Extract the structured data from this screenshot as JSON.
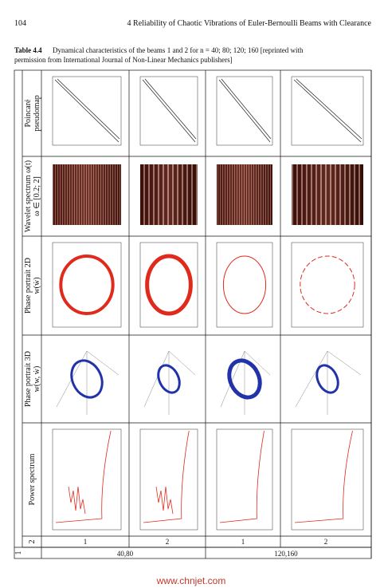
{
  "header": {
    "page_number": "104",
    "running_title": "4 Reliability of Chaotic Vibrations of Euler-Bernoulli Beams with Clearance"
  },
  "caption": {
    "label": "Table 4.4",
    "text_line1": "Dynamical characteristics of the beams 1 and 2 for n = 40; 80; 120; 160 [reprinted with",
    "text_line2": "permission from International Journal of Non-Linear Mechanics publishers]"
  },
  "table": {
    "row_headers": [
      [
        "Poincaré",
        "pseudomap"
      ],
      [
        "Wavelet spectrum ω(t)",
        "ω ∈ [0.2; 2]"
      ],
      [
        "Phase portrait 2D",
        "w(ẇ)"
      ],
      [
        "Phase portrait 3D",
        "w(w, ẇ)"
      ],
      [
        "Power spectrum"
      ]
    ],
    "beam_header": "2",
    "group_header": "1",
    "beams": [
      "1",
      "2",
      "1",
      "2"
    ],
    "groups": [
      "40,80",
      "120,160"
    ]
  },
  "watermark": "www.chnjet.com"
}
